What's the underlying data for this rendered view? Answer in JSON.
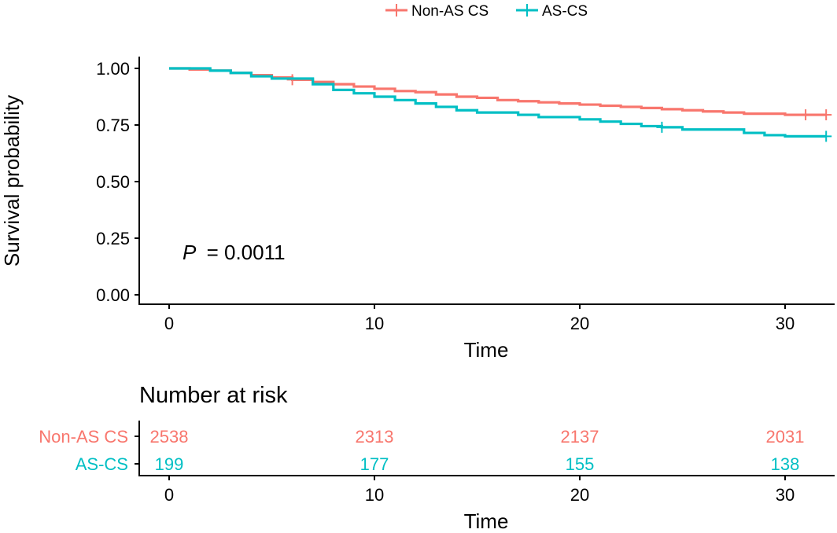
{
  "chart_data": {
    "type": "line",
    "legend": {
      "placement": "top",
      "entries": [
        "Non-AS CS",
        "AS-CS"
      ]
    },
    "survival_plot": {
      "ylabel": "Survival probability",
      "xlabel": "Time",
      "xlim": [
        0,
        32
      ],
      "ylim": [
        0,
        1
      ],
      "x_ticks": [
        "0",
        "10",
        "20",
        "30"
      ],
      "y_ticks": [
        "0.00",
        "0.25",
        "0.50",
        "0.75",
        "1.00"
      ],
      "annotation": {
        "p_label": "P",
        "p_value": "= 0.0011"
      },
      "grid": false,
      "series": [
        {
          "name": "Non-AS CS",
          "color": "#F8766D",
          "step_points": [
            [
              0,
              1.0
            ],
            [
              1,
              0.995
            ],
            [
              2,
              0.99
            ],
            [
              3,
              0.98
            ],
            [
              4,
              0.97
            ],
            [
              5,
              0.96
            ],
            [
              6,
              0.95
            ],
            [
              7,
              0.94
            ],
            [
              8,
              0.93
            ],
            [
              9,
              0.92
            ],
            [
              10,
              0.91
            ],
            [
              11,
              0.9
            ],
            [
              12,
              0.895
            ],
            [
              13,
              0.885
            ],
            [
              14,
              0.875
            ],
            [
              15,
              0.87
            ],
            [
              16,
              0.86
            ],
            [
              17,
              0.855
            ],
            [
              18,
              0.85
            ],
            [
              19,
              0.845
            ],
            [
              20,
              0.84
            ],
            [
              21,
              0.835
            ],
            [
              22,
              0.83
            ],
            [
              23,
              0.825
            ],
            [
              24,
              0.82
            ],
            [
              25,
              0.815
            ],
            [
              26,
              0.81
            ],
            [
              27,
              0.805
            ],
            [
              28,
              0.8
            ],
            [
              29,
              0.8
            ],
            [
              30,
              0.795
            ],
            [
              32,
              0.795
            ]
          ],
          "censor_x": [
            6,
            31,
            32
          ]
        },
        {
          "name": "AS-CS",
          "color": "#00BFC4",
          "step_points": [
            [
              0,
              1.0
            ],
            [
              2,
              0.99
            ],
            [
              3,
              0.98
            ],
            [
              4,
              0.965
            ],
            [
              5,
              0.955
            ],
            [
              7,
              0.93
            ],
            [
              8,
              0.905
            ],
            [
              9,
              0.89
            ],
            [
              10,
              0.875
            ],
            [
              11,
              0.86
            ],
            [
              12,
              0.845
            ],
            [
              13,
              0.83
            ],
            [
              14,
              0.815
            ],
            [
              15,
              0.805
            ],
            [
              17,
              0.795
            ],
            [
              18,
              0.785
            ],
            [
              20,
              0.775
            ],
            [
              21,
              0.765
            ],
            [
              22,
              0.755
            ],
            [
              23,
              0.745
            ],
            [
              24,
              0.74
            ],
            [
              25,
              0.73
            ],
            [
              28,
              0.715
            ],
            [
              29,
              0.705
            ],
            [
              30,
              0.7
            ],
            [
              32,
              0.7
            ]
          ],
          "censor_x": [
            24,
            32
          ]
        }
      ]
    },
    "risk_table": {
      "title": "Number at risk",
      "xlabel": "Time",
      "x_ticks": [
        "0",
        "10",
        "20",
        "30"
      ],
      "times": [
        0,
        10,
        20,
        30
      ],
      "rows": [
        {
          "name": "Non-AS CS",
          "color": "#F8766D",
          "counts": [
            2538,
            2313,
            2137,
            2031
          ]
        },
        {
          "name": "AS-CS",
          "color": "#00BFC4",
          "counts": [
            199,
            177,
            155,
            138
          ]
        }
      ]
    }
  }
}
